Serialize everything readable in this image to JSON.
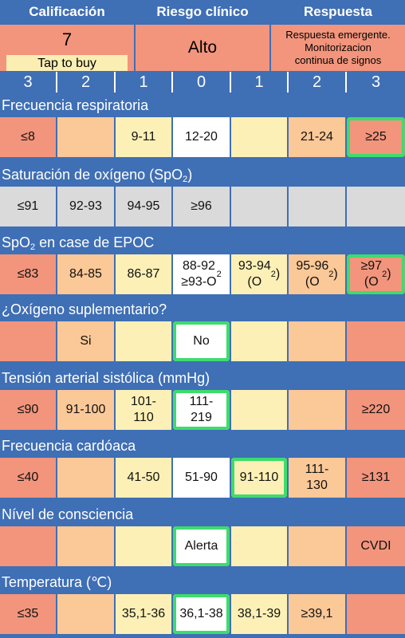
{
  "header": {
    "score_label": "Calificación",
    "risk_label": "Riesgo clínico",
    "response_label": "Respuesta"
  },
  "summary": {
    "score": "7",
    "tap_to_buy": "Tap to buy",
    "risk": "Alto",
    "response_lines": [
      "Respuesta emergente.",
      "Monitorizacion",
      "continua de signos"
    ]
  },
  "points": [
    "3",
    "2",
    "1",
    "0",
    "1",
    "2",
    "3"
  ],
  "colors": {
    "background": "#3f6fb5",
    "red": "#f2957c",
    "orange": "#fbc897",
    "yellow": "#fdf0b6",
    "white": "#ffffff",
    "grey": "#dadada",
    "selected_border": "#3ddc6c"
  },
  "sections": [
    {
      "title": "Frecuencia respiratoria",
      "cells": [
        {
          "text": "≤8",
          "color": "red"
        },
        {
          "text": "",
          "color": "orange"
        },
        {
          "text": "9-11",
          "color": "yellow"
        },
        {
          "text": "12-20",
          "color": "white"
        },
        {
          "text": "",
          "color": "yellow"
        },
        {
          "text": "21-24",
          "color": "orange"
        },
        {
          "text": "≥25",
          "color": "red",
          "selected": true
        }
      ]
    },
    {
      "title": "Saturación de oxígeno (SpO₂)",
      "cells": [
        {
          "text": "≤91",
          "color": "grey"
        },
        {
          "text": "92-93",
          "color": "grey"
        },
        {
          "text": "94-95",
          "color": "grey"
        },
        {
          "text": "≥96",
          "color": "grey"
        },
        {
          "text": "",
          "color": "grey"
        },
        {
          "text": "",
          "color": "grey"
        },
        {
          "text": "",
          "color": "grey"
        }
      ]
    },
    {
      "title": "SpO₂ en case de EPOC",
      "cells": [
        {
          "text": "≤83",
          "color": "red"
        },
        {
          "text": "84-85",
          "color": "orange"
        },
        {
          "text": "86-87",
          "color": "yellow"
        },
        {
          "text": "88-92\n≥93-O₂",
          "color": "white"
        },
        {
          "text": "93-94\n(O₂)",
          "color": "yellow"
        },
        {
          "text": "95-96\n(O₂)",
          "color": "orange"
        },
        {
          "text": "≥97\n(O₂)",
          "color": "red",
          "selected": true
        }
      ]
    },
    {
      "title": "¿Oxígeno suplementario?",
      "cells": [
        {
          "text": "",
          "color": "red"
        },
        {
          "text": "Si",
          "color": "orange"
        },
        {
          "text": "",
          "color": "yellow"
        },
        {
          "text": "No",
          "color": "white",
          "selected": true
        },
        {
          "text": "",
          "color": "yellow"
        },
        {
          "text": "",
          "color": "orange"
        },
        {
          "text": "",
          "color": "red"
        }
      ]
    },
    {
      "title": "Tensión arterial sistólica (mmHg)",
      "cells": [
        {
          "text": "≤90",
          "color": "red"
        },
        {
          "text": "91-100",
          "color": "orange"
        },
        {
          "text": "101-\n110",
          "color": "yellow"
        },
        {
          "text": "111-\n219",
          "color": "white",
          "selected": true
        },
        {
          "text": "",
          "color": "yellow"
        },
        {
          "text": "",
          "color": "orange"
        },
        {
          "text": "≥220",
          "color": "red"
        }
      ]
    },
    {
      "title": "Frecuencia cardóaca",
      "cells": [
        {
          "text": "≤40",
          "color": "red"
        },
        {
          "text": "",
          "color": "orange"
        },
        {
          "text": "41-50",
          "color": "yellow"
        },
        {
          "text": "51-90",
          "color": "white"
        },
        {
          "text": "91-110",
          "color": "yellow",
          "selected": true
        },
        {
          "text": "111-\n130",
          "color": "orange"
        },
        {
          "text": "≥131",
          "color": "red"
        }
      ]
    },
    {
      "title": "Nível de consciencia",
      "cells": [
        {
          "text": "",
          "color": "red"
        },
        {
          "text": "",
          "color": "orange"
        },
        {
          "text": "",
          "color": "yellow"
        },
        {
          "text": "Alerta",
          "color": "white",
          "selected": true
        },
        {
          "text": "",
          "color": "yellow"
        },
        {
          "text": "",
          "color": "orange"
        },
        {
          "text": "CVDI",
          "color": "red"
        }
      ]
    },
    {
      "title": "Temperatura (℃)",
      "cells": [
        {
          "text": "≤35",
          "color": "red"
        },
        {
          "text": "",
          "color": "orange"
        },
        {
          "text": "35,1-36",
          "color": "yellow"
        },
        {
          "text": "36,1-38",
          "color": "white",
          "selected": true
        },
        {
          "text": "38,1-39",
          "color": "yellow"
        },
        {
          "text": "≥39,1",
          "color": "orange"
        },
        {
          "text": "",
          "color": "red"
        }
      ]
    }
  ]
}
